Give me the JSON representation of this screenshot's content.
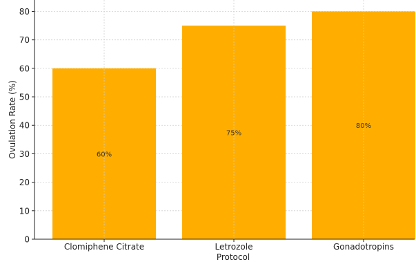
{
  "chart_data": {
    "type": "bar",
    "categories": [
      "Clomiphene Citrate",
      "Letrozole",
      "Gonadotropins"
    ],
    "values": [
      60,
      75,
      80
    ],
    "data_labels": [
      "60%",
      "75%",
      "80%"
    ],
    "title": "",
    "xlabel": "Protocol",
    "ylabel": "Ovulation Rate (%)",
    "ylim": [
      0,
      84
    ],
    "yticks": [
      0,
      10,
      20,
      30,
      40,
      50,
      60,
      70,
      80
    ],
    "grid": true,
    "bar_color": "#FFAE00"
  }
}
